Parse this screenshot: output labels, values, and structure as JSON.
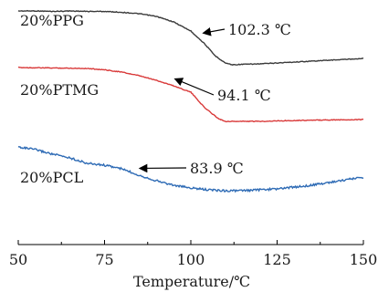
{
  "chart_data": {
    "type": "line",
    "title": "",
    "xlabel": "Temperature/℃",
    "ylabel": "",
    "xlim": [
      50,
      150
    ],
    "x_ticks": [
      50,
      75,
      100,
      125,
      150
    ],
    "grid": false,
    "series": [
      {
        "name": "20%PPG",
        "color": "#3a3a3a",
        "points": [
          [
            50,
            12
          ],
          [
            55,
            12
          ],
          [
            60,
            12.5
          ],
          [
            65,
            12
          ],
          [
            70,
            12.5
          ],
          [
            75,
            12.5
          ],
          [
            80,
            13.5
          ],
          [
            85,
            15
          ],
          [
            90,
            18
          ],
          [
            95,
            24
          ],
          [
            100,
            34
          ],
          [
            104,
            48
          ],
          [
            107,
            61
          ],
          [
            110,
            69
          ],
          [
            112,
            71
          ],
          [
            115,
            70.5
          ],
          [
            120,
            70
          ],
          [
            130,
            68
          ],
          [
            140,
            66
          ],
          [
            150,
            64
          ]
        ],
        "annotation": {
          "text": "102.3 ℃",
          "x": 102.3
        }
      },
      {
        "name": "20%PTMG",
        "color": "#d93a3a",
        "points": [
          [
            50,
            74
          ],
          [
            60,
            74.5
          ],
          [
            70,
            75
          ],
          [
            75,
            76.5
          ],
          [
            80,
            79
          ],
          [
            85,
            83
          ],
          [
            90,
            88
          ],
          [
            95,
            94
          ],
          [
            100,
            101
          ],
          [
            104,
            118
          ],
          [
            108,
            130
          ],
          [
            110,
            133
          ],
          [
            115,
            133
          ],
          [
            120,
            133
          ],
          [
            130,
            132
          ],
          [
            140,
            131.5
          ],
          [
            150,
            131
          ]
        ],
        "annotation": {
          "text": "94.1 ℃",
          "x": 94.1
        }
      },
      {
        "name": "20%PCL",
        "color": "#2e6bb5",
        "points": [
          [
            50,
            161
          ],
          [
            55,
            164
          ],
          [
            60,
            169
          ],
          [
            65,
            173
          ],
          [
            70,
            179
          ],
          [
            75,
            181
          ],
          [
            80,
            185
          ],
          [
            85,
            192
          ],
          [
            90,
            198
          ],
          [
            95,
            203
          ],
          [
            100,
            206
          ],
          [
            105,
            208
          ],
          [
            110,
            209
          ],
          [
            115,
            209
          ],
          [
            120,
            208
          ],
          [
            125,
            207
          ],
          [
            130,
            205
          ],
          [
            135,
            203
          ],
          [
            140,
            200
          ],
          [
            145,
            197
          ],
          [
            150,
            194
          ]
        ],
        "annotation": {
          "text": "83.9 ℃",
          "x": 83.9
        }
      }
    ]
  }
}
